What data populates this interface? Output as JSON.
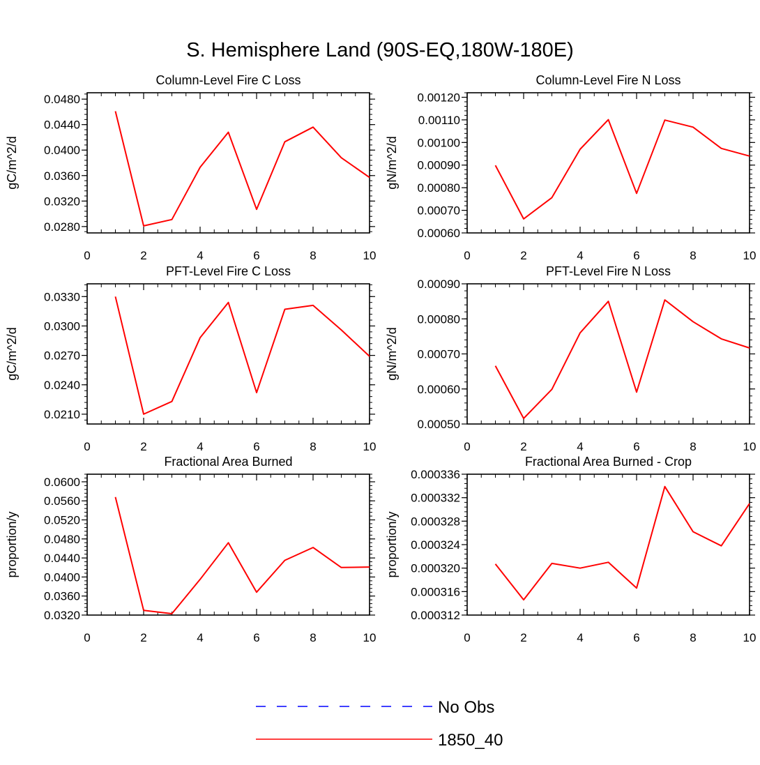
{
  "title": "S. Hemisphere Land (90S-EQ,180W-180E)",
  "colors": {
    "model": "#ff0000",
    "obs": "#0000ff",
    "axis": "#000000"
  },
  "legend": {
    "placement": "bottom-center",
    "entries": [
      {
        "label": "No Obs",
        "style": "dashed",
        "color": "#0000ff"
      },
      {
        "label": "1850_40",
        "style": "solid",
        "color": "#ff0000"
      }
    ]
  },
  "chart_data": [
    {
      "type": "line",
      "title": "Column-Level Fire C Loss",
      "ylabel": "gC/m^2/d",
      "xlabel": "",
      "xlim": [
        0,
        10
      ],
      "ylim": [
        0.027,
        0.049
      ],
      "xticks": [
        0,
        2,
        4,
        6,
        8,
        10
      ],
      "xtick_labels": [
        "0",
        "2",
        "4",
        "6",
        "8",
        "10"
      ],
      "yticks": [
        0.028,
        0.032,
        0.036,
        0.04,
        0.044,
        0.048
      ],
      "ytick_labels": [
        "0.0280",
        "0.0320",
        "0.0360",
        "0.0400",
        "0.0440",
        "0.0480"
      ],
      "series": [
        {
          "name": "1850_40",
          "x": [
            1,
            2,
            3,
            4,
            5,
            6,
            7,
            8,
            9,
            10
          ],
          "values": [
            0.0461,
            0.0281,
            0.0291,
            0.0373,
            0.0428,
            0.0307,
            0.0413,
            0.0436,
            0.0388,
            0.0357
          ]
        }
      ]
    },
    {
      "type": "line",
      "title": "Column-Level Fire N Loss",
      "ylabel": "gN/m^2/d",
      "xlabel": "",
      "xlim": [
        0,
        10
      ],
      "ylim": [
        0.0006,
        0.00122
      ],
      "xticks": [
        0,
        2,
        4,
        6,
        8,
        10
      ],
      "xtick_labels": [
        "0",
        "2",
        "4",
        "6",
        "8",
        "10"
      ],
      "yticks": [
        0.0006,
        0.0007,
        0.0008,
        0.0009,
        0.001,
        0.0011,
        0.0012
      ],
      "ytick_labels": [
        "0.00060",
        "0.00070",
        "0.00080",
        "0.00090",
        "0.00100",
        "0.00110",
        "0.00120"
      ],
      "series": [
        {
          "name": "1850_40",
          "x": [
            1,
            2,
            3,
            4,
            5,
            6,
            7,
            8,
            9,
            10
          ],
          "values": [
            0.000899,
            0.000662,
            0.000756,
            0.00097,
            0.001101,
            0.000775,
            0.001099,
            0.001068,
            0.000974,
            0.00094
          ]
        }
      ]
    },
    {
      "type": "line",
      "title": "PFT-Level Fire C Loss",
      "ylabel": "gC/m^2/d",
      "xlabel": "",
      "xlim": [
        0,
        10
      ],
      "ylim": [
        0.02,
        0.0343
      ],
      "xticks": [
        0,
        2,
        4,
        6,
        8,
        10
      ],
      "xtick_labels": [
        "0",
        "2",
        "4",
        "6",
        "8",
        "10"
      ],
      "yticks": [
        0.021,
        0.024,
        0.027,
        0.03,
        0.033
      ],
      "ytick_labels": [
        "0.0210",
        "0.0240",
        "0.0270",
        "0.0300",
        "0.0330"
      ],
      "series": [
        {
          "name": "1850_40",
          "x": [
            1,
            2,
            3,
            4,
            5,
            6,
            7,
            8,
            9,
            10
          ],
          "values": [
            0.033,
            0.021,
            0.0223,
            0.0288,
            0.0324,
            0.0232,
            0.0317,
            0.0321,
            0.0296,
            0.0269
          ]
        }
      ]
    },
    {
      "type": "line",
      "title": "PFT-Level Fire N Loss",
      "ylabel": "gN/m^2/d",
      "xlabel": "",
      "xlim": [
        0,
        10
      ],
      "ylim": [
        0.0005,
        0.0009
      ],
      "xticks": [
        0,
        2,
        4,
        6,
        8,
        10
      ],
      "xtick_labels": [
        "0",
        "2",
        "4",
        "6",
        "8",
        "10"
      ],
      "yticks": [
        0.0005,
        0.0006,
        0.0007,
        0.0008,
        0.0009
      ],
      "ytick_labels": [
        "0.00050",
        "0.00060",
        "0.00070",
        "0.00080",
        "0.00090"
      ],
      "series": [
        {
          "name": "1850_40",
          "x": [
            1,
            2,
            3,
            4,
            5,
            6,
            7,
            8,
            9,
            10
          ],
          "values": [
            0.000666,
            0.000516,
            0.000599,
            0.00076,
            0.00085,
            0.000591,
            0.000854,
            0.000792,
            0.000743,
            0.000717
          ]
        }
      ]
    },
    {
      "type": "line",
      "title": "Fractional Area Burned",
      "ylabel": "proportion/y",
      "xlabel": "",
      "xlim": [
        0,
        10
      ],
      "ylim": [
        0.032,
        0.0616
      ],
      "xticks": [
        0,
        2,
        4,
        6,
        8,
        10
      ],
      "xtick_labels": [
        "0",
        "2",
        "4",
        "6",
        "8",
        "10"
      ],
      "yticks": [
        0.032,
        0.036,
        0.04,
        0.044,
        0.048,
        0.052,
        0.056,
        0.06
      ],
      "ytick_labels": [
        "0.0320",
        "0.0360",
        "0.0400",
        "0.0440",
        "0.0480",
        "0.0520",
        "0.0560",
        "0.0600"
      ],
      "series": [
        {
          "name": "1850_40",
          "x": [
            1,
            2,
            3,
            4,
            5,
            6,
            7,
            8,
            9,
            10
          ],
          "values": [
            0.0568,
            0.033,
            0.0323,
            0.0395,
            0.0472,
            0.0368,
            0.0435,
            0.0462,
            0.042,
            0.0421
          ]
        }
      ]
    },
    {
      "type": "line",
      "title": "Fractional Area Burned - Crop",
      "ylabel": "proportion/y",
      "xlabel": "",
      "xlim": [
        0,
        10
      ],
      "ylim": [
        0.000312,
        0.000336
      ],
      "xticks": [
        0,
        2,
        4,
        6,
        8,
        10
      ],
      "xtick_labels": [
        "0",
        "2",
        "4",
        "6",
        "8",
        "10"
      ],
      "yticks": [
        0.000312,
        0.000316,
        0.00032,
        0.000324,
        0.000328,
        0.000332,
        0.000336
      ],
      "ytick_labels": [
        "0.000312",
        "0.000316",
        "0.000320",
        "0.000324",
        "0.000328",
        "0.000332",
        "0.000336"
      ],
      "series": [
        {
          "name": "1850_40",
          "x": [
            1,
            2,
            3,
            4,
            5,
            6,
            7,
            8,
            9,
            10
          ],
          "values": [
            0.0003207,
            0.0003146,
            0.0003208,
            0.00032,
            0.000321,
            0.0003166,
            0.0003339,
            0.0003262,
            0.0003238,
            0.000331
          ]
        }
      ]
    }
  ]
}
